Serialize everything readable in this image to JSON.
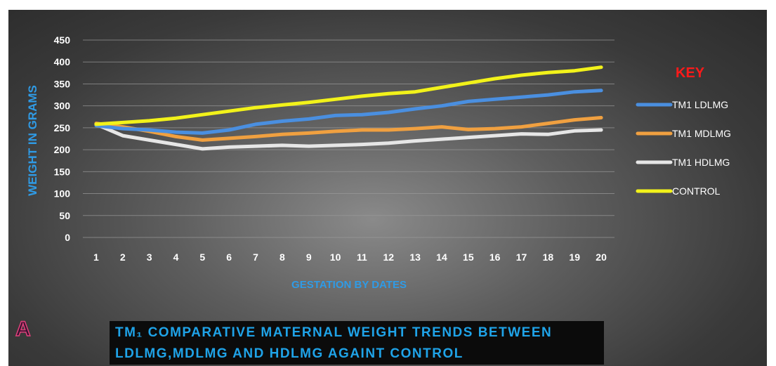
{
  "chart_data": {
    "type": "line",
    "title": "",
    "xlabel": "GESTATION BY DATES",
    "ylabel": "WEIGHT IN GRAMS",
    "ylim": [
      0,
      450
    ],
    "yticks": [
      0,
      50,
      100,
      150,
      200,
      250,
      300,
      350,
      400,
      450
    ],
    "x": [
      1,
      2,
      3,
      4,
      5,
      6,
      7,
      8,
      9,
      10,
      11,
      12,
      13,
      14,
      15,
      16,
      17,
      18,
      19,
      20
    ],
    "grid": true,
    "legend_title": "KEY",
    "legend_position": "right",
    "series": [
      {
        "name": "TM1 LDLMG",
        "color": "#4a8fe0",
        "values": [
          255,
          248,
          245,
          240,
          238,
          245,
          258,
          265,
          270,
          278,
          280,
          285,
          293,
          300,
          310,
          315,
          320,
          325,
          332,
          335
        ]
      },
      {
        "name": "TM1 MDLMG",
        "color": "#f0a040",
        "values": [
          260,
          252,
          242,
          230,
          222,
          226,
          230,
          235,
          238,
          242,
          245,
          245,
          248,
          252,
          246,
          248,
          252,
          260,
          268,
          273
        ]
      },
      {
        "name": "TM1 HDLMG",
        "color": "#e6e6e6",
        "values": [
          258,
          232,
          222,
          212,
          202,
          206,
          208,
          210,
          208,
          210,
          212,
          215,
          220,
          224,
          228,
          232,
          236,
          235,
          243,
          245
        ]
      },
      {
        "name": "CONTROL",
        "color": "#f2f21a",
        "values": [
          258,
          262,
          266,
          272,
          280,
          288,
          296,
          302,
          308,
          315,
          322,
          328,
          332,
          342,
          352,
          362,
          370,
          376,
          380,
          388
        ]
      }
    ]
  },
  "caption": {
    "line1": "TM₁ COMPARATIVE MATERNAL WEIGHT TRENDS BETWEEN",
    "line2": "LDLMG,MDLMG AND HDLMG  AGAINT CONTROL"
  },
  "panel_letter": "A"
}
